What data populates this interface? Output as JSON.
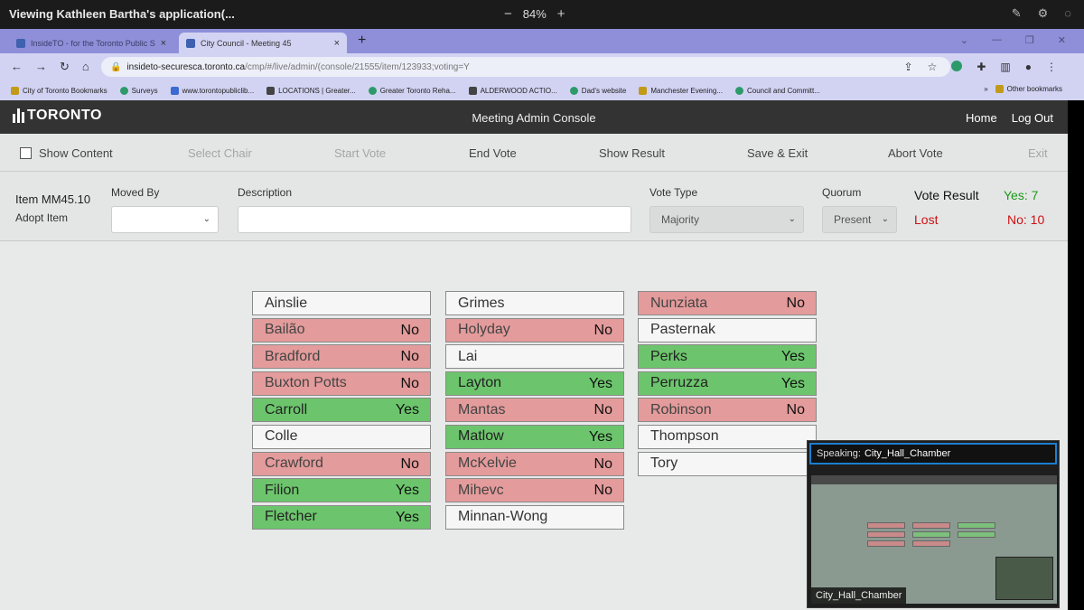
{
  "share_bar": {
    "title": "Viewing Kathleen Bartha's application(...",
    "zoom_minus": "−",
    "zoom_value": "84%",
    "zoom_plus": "+"
  },
  "browser": {
    "tabs": [
      {
        "label": "InsideTO - for the Toronto Public Se...",
        "close": "×"
      },
      {
        "label": "City Council - Meeting 45",
        "close": "×"
      }
    ],
    "new_tab": "+",
    "url_host": "insideto-securesca.toronto.ca",
    "url_path": "/cmp/#/live/admin/(console/21555/item/123933;voting=Y",
    "bookmarks": [
      {
        "label": "City of Toronto Bookmarks",
        "icon": "folder-icon"
      },
      {
        "label": "Surveys",
        "icon": "globe-icon"
      },
      {
        "label": "www.torontopubliclib...",
        "icon": "tpl-icon"
      },
      {
        "label": "LOCATIONS | Greater...",
        "icon": "page-icon"
      },
      {
        "label": "Greater Toronto Reha...",
        "icon": "globe-icon"
      },
      {
        "label": "ALDERWOOD ACTIO...",
        "icon": "page-icon"
      },
      {
        "label": "Dad's website",
        "icon": "globe-icon"
      },
      {
        "label": "Manchester Evening...",
        "icon": "folder-icon"
      },
      {
        "label": "Council and Committ...",
        "icon": "globe-icon"
      }
    ],
    "more": "»",
    "other_bookmarks": "Other bookmarks"
  },
  "app": {
    "logo_text": "TORONTO",
    "title": "Meeting Admin Console",
    "home": "Home",
    "logout": "Log Out"
  },
  "toolbar": {
    "show_content": "Show Content",
    "select_chair": "Select Chair",
    "start_vote": "Start Vote",
    "end_vote": "End Vote",
    "show_result": "Show Result",
    "save_exit": "Save & Exit",
    "abort_vote": "Abort Vote",
    "exit": "Exit"
  },
  "form": {
    "item_id": "Item MM45.10",
    "item_action": "Adopt Item",
    "moved_by_label": "Moved By",
    "moved_by_value": "",
    "description_label": "Description",
    "description_value": "",
    "vote_type_label": "Vote Type",
    "vote_type_value": "Majority",
    "quorum_label": "Quorum",
    "quorum_value": "Present",
    "vote_result_label": "Vote Result",
    "yes_count": "Yes: 7",
    "result": "Lost",
    "no_count": "No: 10"
  },
  "colors": {
    "yes": "#6cc56c",
    "no": "#e49b9b",
    "neutral": "#f6f6f6",
    "header": "#333333"
  },
  "members": {
    "col1": [
      {
        "name": "Ainslie",
        "vote": "",
        "status": "none"
      },
      {
        "name": "Bailão",
        "vote": "No",
        "status": "no"
      },
      {
        "name": "Bradford",
        "vote": "No",
        "status": "no"
      },
      {
        "name": "Buxton Potts",
        "vote": "No",
        "status": "no"
      },
      {
        "name": "Carroll",
        "vote": "Yes",
        "status": "yes"
      },
      {
        "name": "Colle",
        "vote": "",
        "status": "none"
      },
      {
        "name": "Crawford",
        "vote": "No",
        "status": "no"
      },
      {
        "name": "Filion",
        "vote": "Yes",
        "status": "yes"
      },
      {
        "name": "Fletcher",
        "vote": "Yes",
        "status": "yes"
      }
    ],
    "col2": [
      {
        "name": "Grimes",
        "vote": "",
        "status": "none"
      },
      {
        "name": "Holyday",
        "vote": "No",
        "status": "no"
      },
      {
        "name": "Lai",
        "vote": "",
        "status": "none"
      },
      {
        "name": "Layton",
        "vote": "Yes",
        "status": "yes"
      },
      {
        "name": "Mantas",
        "vote": "No",
        "status": "no"
      },
      {
        "name": "Matlow",
        "vote": "Yes",
        "status": "yes"
      },
      {
        "name": "McKelvie",
        "vote": "No",
        "status": "no"
      },
      {
        "name": "Mihevc",
        "vote": "No",
        "status": "no"
      },
      {
        "name": "Minnan-Wong",
        "vote": "",
        "status": "none"
      }
    ],
    "col3": [
      {
        "name": "Nunziata",
        "vote": "No",
        "status": "no"
      },
      {
        "name": "Pasternak",
        "vote": "",
        "status": "none"
      },
      {
        "name": "Perks",
        "vote": "Yes",
        "status": "yes"
      },
      {
        "name": "Perruzza",
        "vote": "Yes",
        "status": "yes"
      },
      {
        "name": "Robinson",
        "vote": "No",
        "status": "no"
      },
      {
        "name": "Thompson",
        "vote": "",
        "status": "none"
      },
      {
        "name": "Tory",
        "vote": "",
        "status": "none"
      }
    ]
  },
  "video": {
    "speaking_label": "Speaking:",
    "speaking_name": "City_Hall_Chamber",
    "tile_name": "City_Hall_Chamber"
  }
}
